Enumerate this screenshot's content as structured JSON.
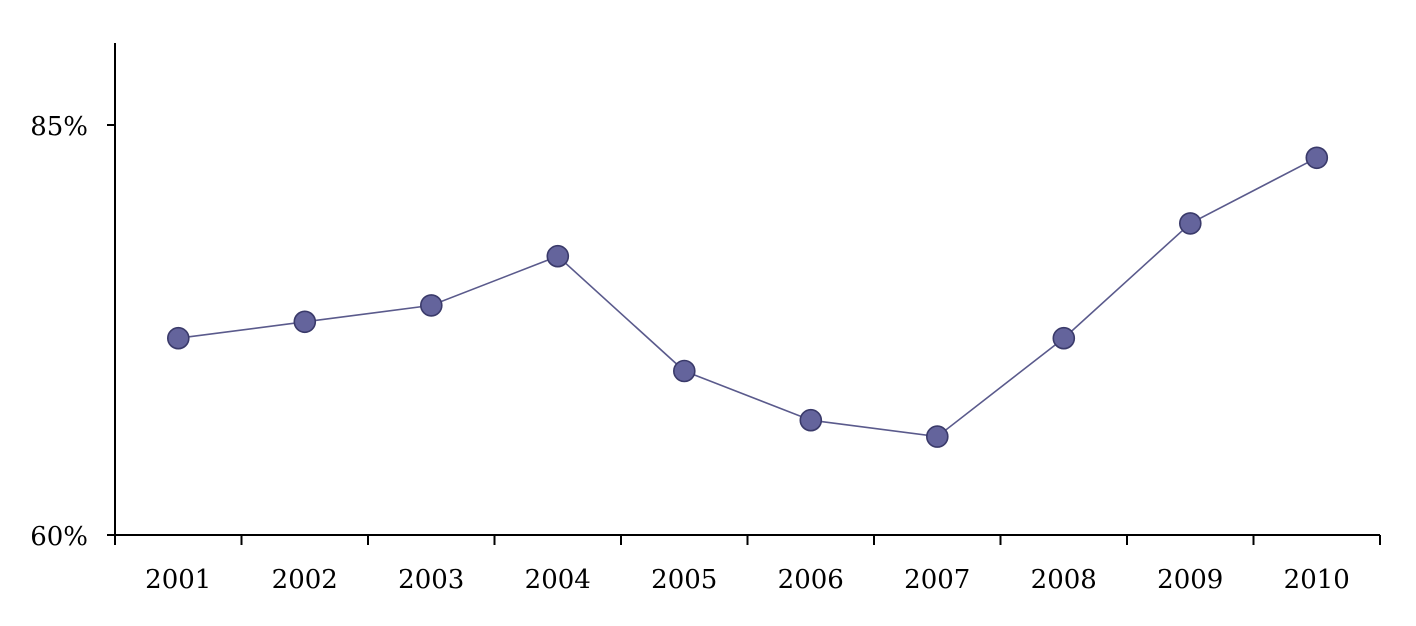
{
  "chart_data": {
    "type": "line",
    "title": "",
    "xlabel": "",
    "ylabel": "",
    "categories": [
      "2001",
      "2002",
      "2003",
      "2004",
      "2005",
      "2006",
      "2007",
      "2008",
      "2009",
      "2010"
    ],
    "series": [
      {
        "values": [
          72.0,
          73.0,
          74.0,
          77.0,
          70.0,
          67.0,
          66.0,
          72.0,
          79.0,
          83.0
        ]
      }
    ],
    "ylim": [
      60,
      90
    ],
    "yticks": [
      {
        "value": 60,
        "label": "60%"
      },
      {
        "value": 85,
        "label": "85%"
      }
    ],
    "grid": false,
    "legend": "none",
    "colors": {
      "line": "#5a5a8c",
      "marker_fill": "#64649c",
      "marker_stroke": "#3a3a6a",
      "axis": "#000000"
    }
  }
}
